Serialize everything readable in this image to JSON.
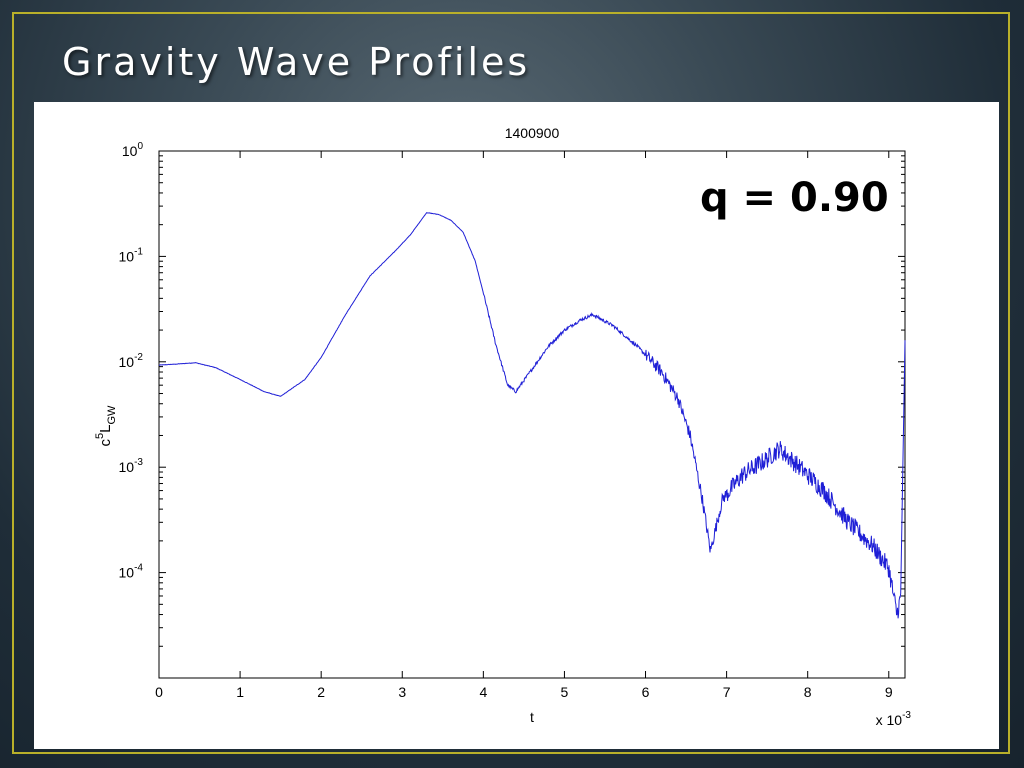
{
  "slide": {
    "title": "Gravity Wave Profiles"
  },
  "annotation": "q = 0.90",
  "colors": {
    "series": "#1f1fd6",
    "frame": "#b9b02a"
  },
  "chart_data": {
    "type": "line",
    "title": "1400900",
    "xlabel": "t",
    "xlabel_multiplier": "x 10",
    "xlabel_multiplier_exp": "-3",
    "ylabel_base": "c",
    "ylabel_sup": "5",
    "ylabel_main": "L",
    "ylabel_sub": "GW",
    "xlim": [
      0,
      9.2
    ],
    "ylim": [
      1e-05,
      1
    ],
    "yscale": "log",
    "grid": false,
    "xticks": [
      0,
      1,
      2,
      3,
      4,
      5,
      6,
      7,
      8,
      9
    ],
    "yticks": [
      {
        "value": 1,
        "base": "10",
        "exp": "0"
      },
      {
        "value": 0.1,
        "base": "10",
        "exp": "-1"
      },
      {
        "value": 0.01,
        "base": "10",
        "exp": "-2"
      },
      {
        "value": 0.001,
        "base": "10",
        "exp": "-3"
      },
      {
        "value": 0.0001,
        "base": "10",
        "exp": "-4"
      }
    ],
    "series": [
      {
        "x": [
          0,
          0.2,
          0.45,
          0.7,
          1.0,
          1.3,
          1.5,
          1.8,
          2.0,
          2.3,
          2.6,
          2.9,
          3.1,
          3.3,
          3.45,
          3.6,
          3.75,
          3.9,
          4.0,
          4.15,
          4.3,
          4.4,
          4.6,
          4.8,
          5.0,
          5.2,
          5.35,
          5.6,
          5.9,
          6.2,
          6.4,
          6.55,
          6.7,
          6.8,
          6.95,
          7.2,
          7.5,
          7.65,
          7.9,
          8.2,
          8.5,
          8.8,
          9.0,
          9.1,
          9.15,
          9.2
        ],
        "y": [
          0.0093,
          0.0095,
          0.0098,
          0.0088,
          0.0068,
          0.0052,
          0.0047,
          0.0068,
          0.011,
          0.028,
          0.065,
          0.11,
          0.16,
          0.26,
          0.25,
          0.22,
          0.17,
          0.09,
          0.045,
          0.015,
          0.006,
          0.0052,
          0.0085,
          0.014,
          0.02,
          0.025,
          0.028,
          0.022,
          0.014,
          0.008,
          0.0045,
          0.002,
          0.0005,
          0.00016,
          0.0005,
          0.00085,
          0.0012,
          0.0015,
          0.001,
          0.0006,
          0.0003,
          0.00018,
          0.00011,
          4e-05,
          6e-05,
          0.016
        ]
      }
    ]
  }
}
